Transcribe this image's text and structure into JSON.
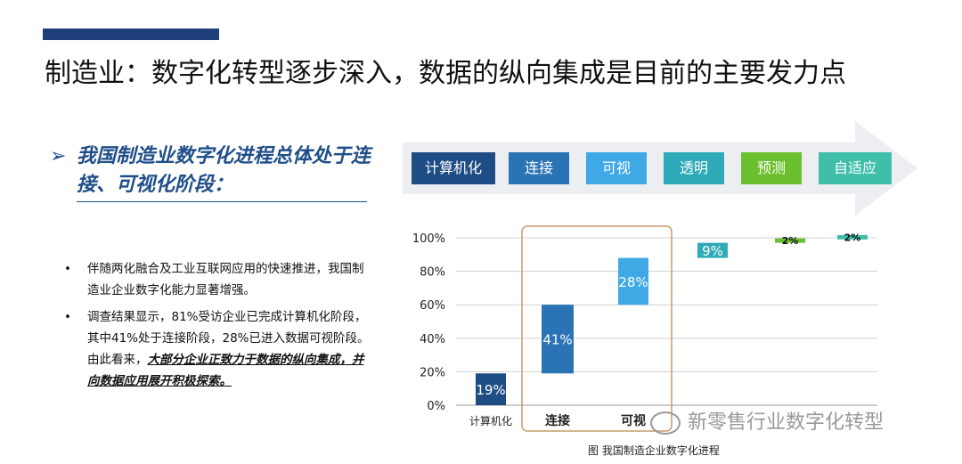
{
  "page": {
    "title": "制造业：数字化转型逐步深入，数据的纵向集成是目前的主要发力点",
    "heading_marker": "➢",
    "heading": "我国制造业数字化进程总体处于连接、可视化阶段：",
    "bullets": [
      {
        "text": "伴随两化融合及工业互联网应用的快速推进，我国制造业企业数字化能力显著增强。"
      },
      {
        "text": "调查结果显示，81%受访企业已完成计算机化阶段，其中41%处于连接阶段，28%已进入数据可视阶段。由此看来，",
        "emphasis": "大部分企业正致力于数据的纵向集成，并向数据应用展开积极探索。"
      }
    ],
    "bullet_marker": "•",
    "caption": "图 我国制造企业数字化进程",
    "watermark": "新零售行业数字化转型"
  },
  "stages": [
    {
      "label": "计算机化",
      "color": "#1e4d86"
    },
    {
      "label": "连接",
      "color": "#2a74b6"
    },
    {
      "label": "可视",
      "color": "#3fa9e6"
    },
    {
      "label": "透明",
      "color": "#2eaab8"
    },
    {
      "label": "预测",
      "color": "#6cbf2e"
    },
    {
      "label": "自适应",
      "color": "#3fbfa9"
    }
  ],
  "chart_data": {
    "type": "bar",
    "subtype": "waterfall",
    "categories": [
      "计算机化",
      "连接",
      "可视",
      "透明",
      "预测",
      "自适应"
    ],
    "x_tick_labels": [
      "计算机化",
      "连接",
      "可视"
    ],
    "values": [
      19,
      41,
      28,
      9,
      2,
      2
    ],
    "bases": [
      0,
      19,
      60,
      88,
      97,
      99
    ],
    "value_labels": [
      "19%",
      "41%",
      "28%",
      "9%",
      "2%",
      "2%"
    ],
    "colors": [
      "#1e4d86",
      "#2a74b6",
      "#3fa9e6",
      "#2eaab8",
      "#6cbf2e",
      "#3fbfa9"
    ],
    "y_ticks": [
      "0%",
      "20%",
      "40%",
      "60%",
      "80%",
      "100%"
    ],
    "ylim": [
      0,
      100
    ],
    "grid": true,
    "highlight_categories": [
      "连接",
      "可视"
    ]
  }
}
